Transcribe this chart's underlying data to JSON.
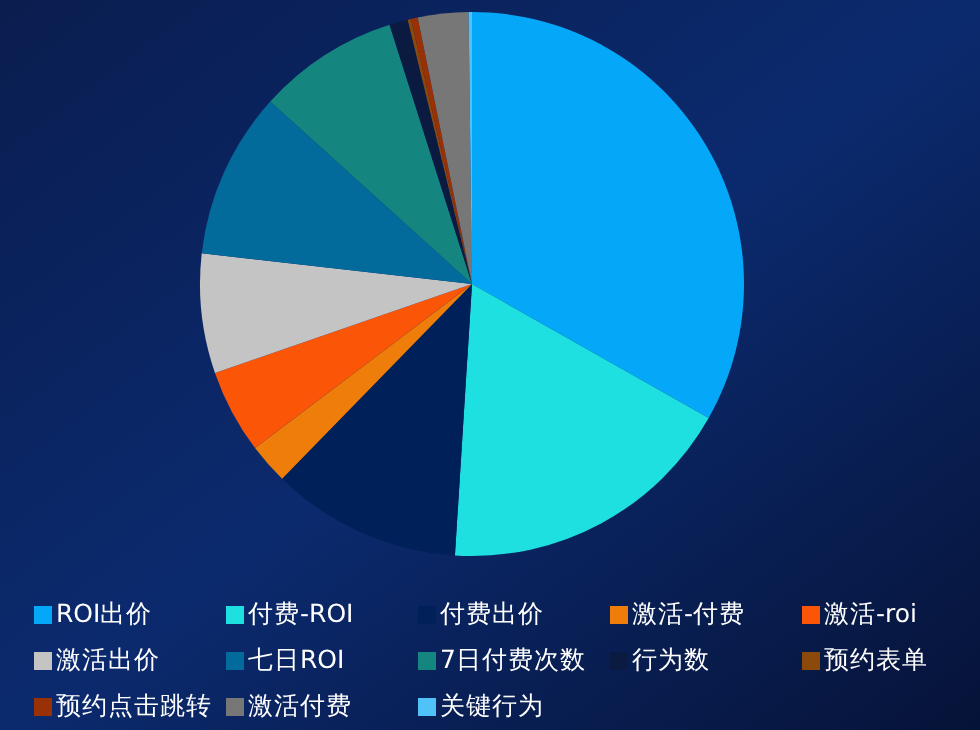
{
  "chart_data": {
    "type": "pie",
    "legend": "bottom",
    "categories": [
      "ROI出价",
      "付费-ROI",
      "付费出价",
      "激活-付费",
      "激活-roi",
      "激活出价",
      "七日ROI",
      "7日付费次数",
      "行为数",
      "预约表单",
      "预约点击跳转",
      "激活付费",
      "关键行为"
    ],
    "values": [
      33.2,
      17.8,
      11.3,
      2.4,
      5.0,
      7.1,
      9.9,
      8.4,
      1.1,
      0.2,
      0.4,
      3.0,
      0.2
    ],
    "colors": [
      "#05a8f8",
      "#1fe0e0",
      "#00205a",
      "#ef7d0a",
      "#fb5607",
      "#c4c4c4",
      "#036a9c",
      "#158580",
      "#0a1a40",
      "#8b4a0c",
      "#9a3006",
      "#777777",
      "#4fc3f7"
    ]
  }
}
